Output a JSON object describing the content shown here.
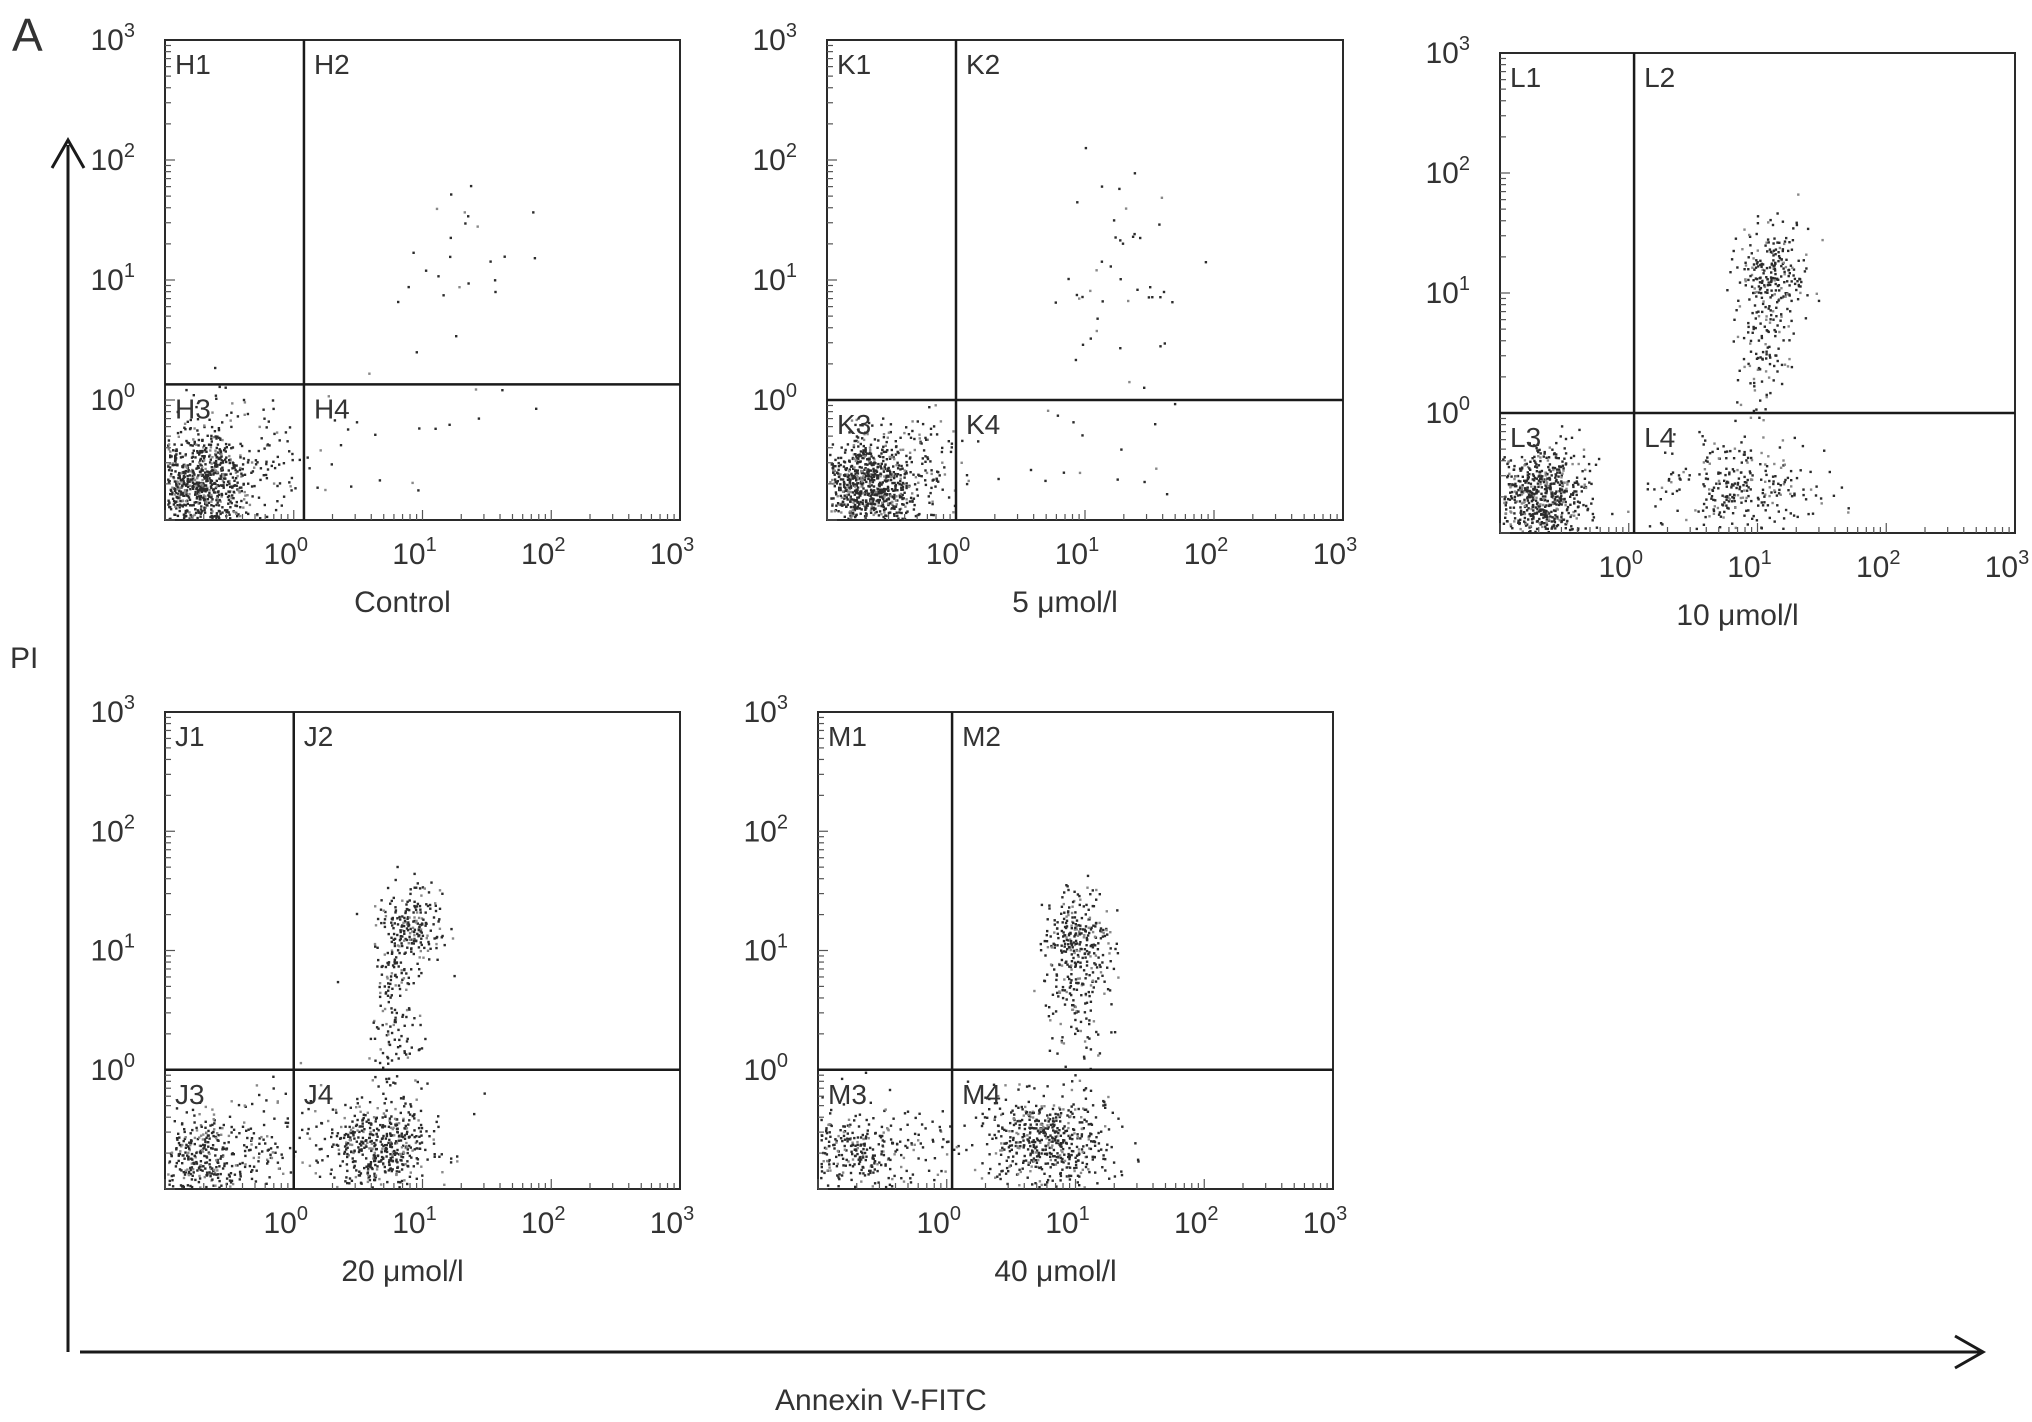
{
  "figure": {
    "panel_label": "A",
    "y_axis_label": "PI",
    "x_axis_label": "Annexin V-FITC"
  },
  "chart_data": [
    {
      "type": "scatter",
      "title": "Control",
      "quadrants": [
        "H1",
        "H2",
        "H3",
        "H4"
      ],
      "xscale": "log",
      "yscale": "log",
      "xlim": [
        0.1,
        1000
      ],
      "ylim": [
        0.1,
        1000
      ],
      "x_ticks": [
        "10^0",
        "10^1",
        "10^2",
        "10^3"
      ],
      "y_ticks": [
        "10^0",
        "10^1",
        "10^2",
        "10^3"
      ],
      "gate": {
        "x": 1.2,
        "y": 1.35
      },
      "clusters": [
        {
          "region": "H3",
          "center": [
            0.18,
            0.2
          ],
          "spread": [
            0.22,
            0.22
          ],
          "count": 900
        },
        {
          "region": "H3",
          "center": [
            0.4,
            0.35
          ],
          "spread": [
            0.3,
            0.3
          ],
          "count": 120
        },
        {
          "region": "H2",
          "center": [
            20,
            15
          ],
          "spread": [
            0.35,
            0.4
          ],
          "count": 25
        },
        {
          "region": "H4",
          "center": [
            8,
            0.35
          ],
          "spread": [
            0.45,
            0.3
          ],
          "count": 18
        }
      ]
    },
    {
      "type": "scatter",
      "title": "5 μmol/l",
      "quadrants": [
        "K1",
        "K2",
        "K3",
        "K4"
      ],
      "xscale": "log",
      "yscale": "log",
      "xlim": [
        0.1,
        1000
      ],
      "ylim": [
        0.1,
        1000
      ],
      "x_ticks": [
        "10^0",
        "10^1",
        "10^2",
        "10^3"
      ],
      "y_ticks": [
        "10^0",
        "10^1",
        "10^2",
        "10^3"
      ],
      "gate": {
        "x": 1.0,
        "y": 1.0
      },
      "clusters": [
        {
          "region": "K3",
          "center": [
            0.2,
            0.2
          ],
          "spread": [
            0.2,
            0.2
          ],
          "count": 850
        },
        {
          "region": "K3",
          "center": [
            0.5,
            0.3
          ],
          "spread": [
            0.25,
            0.25
          ],
          "count": 100
        },
        {
          "region": "K2",
          "center": [
            20,
            8
          ],
          "spread": [
            0.2,
            0.45
          ],
          "count": 45
        },
        {
          "region": "K4",
          "center": [
            10,
            0.3
          ],
          "spread": [
            0.45,
            0.3
          ],
          "count": 20
        }
      ]
    },
    {
      "type": "scatter",
      "title": "10 μmol/l",
      "quadrants": [
        "L1",
        "L2",
        "L3",
        "L4"
      ],
      "xscale": "log",
      "yscale": "log",
      "xlim": [
        0.1,
        1000
      ],
      "ylim": [
        0.1,
        1000
      ],
      "x_ticks": [
        "10^0",
        "10^1",
        "10^2",
        "10^3"
      ],
      "y_ticks": [
        "10^0",
        "10^1",
        "10^2",
        "10^3"
      ],
      "gate": {
        "x": 1.1,
        "y": 1.0
      },
      "clusters": [
        {
          "region": "L3",
          "center": [
            0.2,
            0.2
          ],
          "spread": [
            0.2,
            0.2
          ],
          "count": 700
        },
        {
          "region": "L2",
          "center": [
            13,
            15
          ],
          "spread": [
            0.14,
            0.2
          ],
          "count": 220
        },
        {
          "region": "L2",
          "center": [
            11,
            4
          ],
          "spread": [
            0.1,
            0.35
          ],
          "count": 120
        },
        {
          "region": "L4",
          "center": [
            7,
            0.25
          ],
          "spread": [
            0.3,
            0.2
          ],
          "count": 300
        }
      ]
    },
    {
      "type": "scatter",
      "title": "20 μmol/l",
      "quadrants": [
        "J1",
        "J2",
        "J3",
        "J4"
      ],
      "xscale": "log",
      "yscale": "log",
      "xlim": [
        0.1,
        1000
      ],
      "ylim": [
        0.1,
        1000
      ],
      "x_ticks": [
        "10^0",
        "10^1",
        "10^2",
        "10^3"
      ],
      "y_ticks": [
        "10^0",
        "10^1",
        "10^2",
        "10^3"
      ],
      "gate": {
        "x": 1.0,
        "y": 1.0
      },
      "clusters": [
        {
          "region": "J3",
          "center": [
            0.18,
            0.18
          ],
          "spread": [
            0.2,
            0.18
          ],
          "count": 350
        },
        {
          "region": "J3",
          "center": [
            0.5,
            0.25
          ],
          "spread": [
            0.3,
            0.25
          ],
          "count": 120
        },
        {
          "region": "J4",
          "center": [
            4.5,
            0.22
          ],
          "spread": [
            0.22,
            0.2
          ],
          "count": 500
        },
        {
          "region": "J2",
          "center": [
            8,
            16
          ],
          "spread": [
            0.14,
            0.18
          ],
          "count": 220
        },
        {
          "region": "J2",
          "center": [
            6,
            3
          ],
          "spread": [
            0.1,
            0.4
          ],
          "count": 150
        }
      ]
    },
    {
      "type": "scatter",
      "title": "40 μmol/l",
      "quadrants": [
        "M1",
        "M2",
        "M3",
        "M4"
      ],
      "xscale": "log",
      "yscale": "log",
      "xlim": [
        0.1,
        1000
      ],
      "ylim": [
        0.1,
        1000
      ],
      "x_ticks": [
        "10^0",
        "10^1",
        "10^2",
        "10^3"
      ],
      "y_ticks": [
        "10^0",
        "10^1",
        "10^2",
        "10^3"
      ],
      "gate": {
        "x": 1.1,
        "y": 1.0
      },
      "clusters": [
        {
          "region": "M3",
          "center": [
            0.18,
            0.22
          ],
          "spread": [
            0.22,
            0.2
          ],
          "count": 250
        },
        {
          "region": "M3",
          "center": [
            0.5,
            0.25
          ],
          "spread": [
            0.3,
            0.25
          ],
          "count": 80
        },
        {
          "region": "M4",
          "center": [
            6,
            0.25
          ],
          "spread": [
            0.25,
            0.2
          ],
          "count": 550
        },
        {
          "region": "M2",
          "center": [
            10,
            12
          ],
          "spread": [
            0.14,
            0.2
          ],
          "count": 260
        },
        {
          "region": "M2",
          "center": [
            10,
            3
          ],
          "spread": [
            0.12,
            0.35
          ],
          "count": 120
        }
      ]
    }
  ]
}
